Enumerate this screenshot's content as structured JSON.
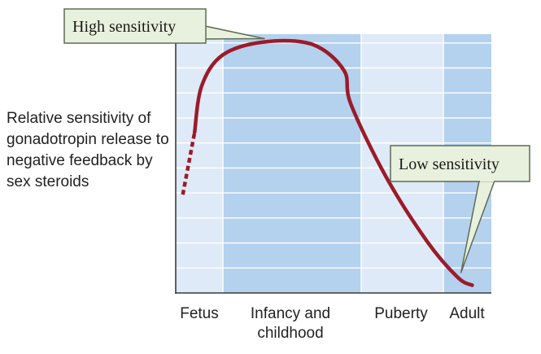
{
  "chart_data": {
    "type": "line",
    "ylabel": "Relative sensitivity of gonadotropin release to negative feedback by sex steroids",
    "xlabel": "",
    "categories": [
      "Fetus",
      "Infancy and\nchildhood",
      "Puberty",
      "Adult"
    ],
    "series": [
      {
        "values_dashed": [
          [
            0.15,
            0.38
          ],
          [
            0.4,
            0.62
          ]
        ],
        "values": [
          [
            0.4,
            0.62
          ],
          [
            0.55,
            0.8
          ],
          [
            1.0,
            0.92
          ],
          [
            1.6,
            0.97
          ],
          [
            2.3,
            0.96
          ],
          [
            2.75,
            0.86
          ],
          [
            2.85,
            0.73
          ],
          [
            3.3,
            0.45
          ],
          [
            3.8,
            0.2
          ],
          [
            4.3,
            0.06
          ],
          [
            4.6,
            0.03
          ]
        ]
      }
    ],
    "annotations": [
      {
        "text": "High sensitivity"
      },
      {
        "text": "Low sensitivity"
      }
    ],
    "colors": {
      "band_light": "#deeaf7",
      "band_dark": "#b4d1ee",
      "curve": "#9b1b2a",
      "callout_fill": "#e8f1dd",
      "callout_stroke": "#5f6b55"
    },
    "grid": true
  }
}
